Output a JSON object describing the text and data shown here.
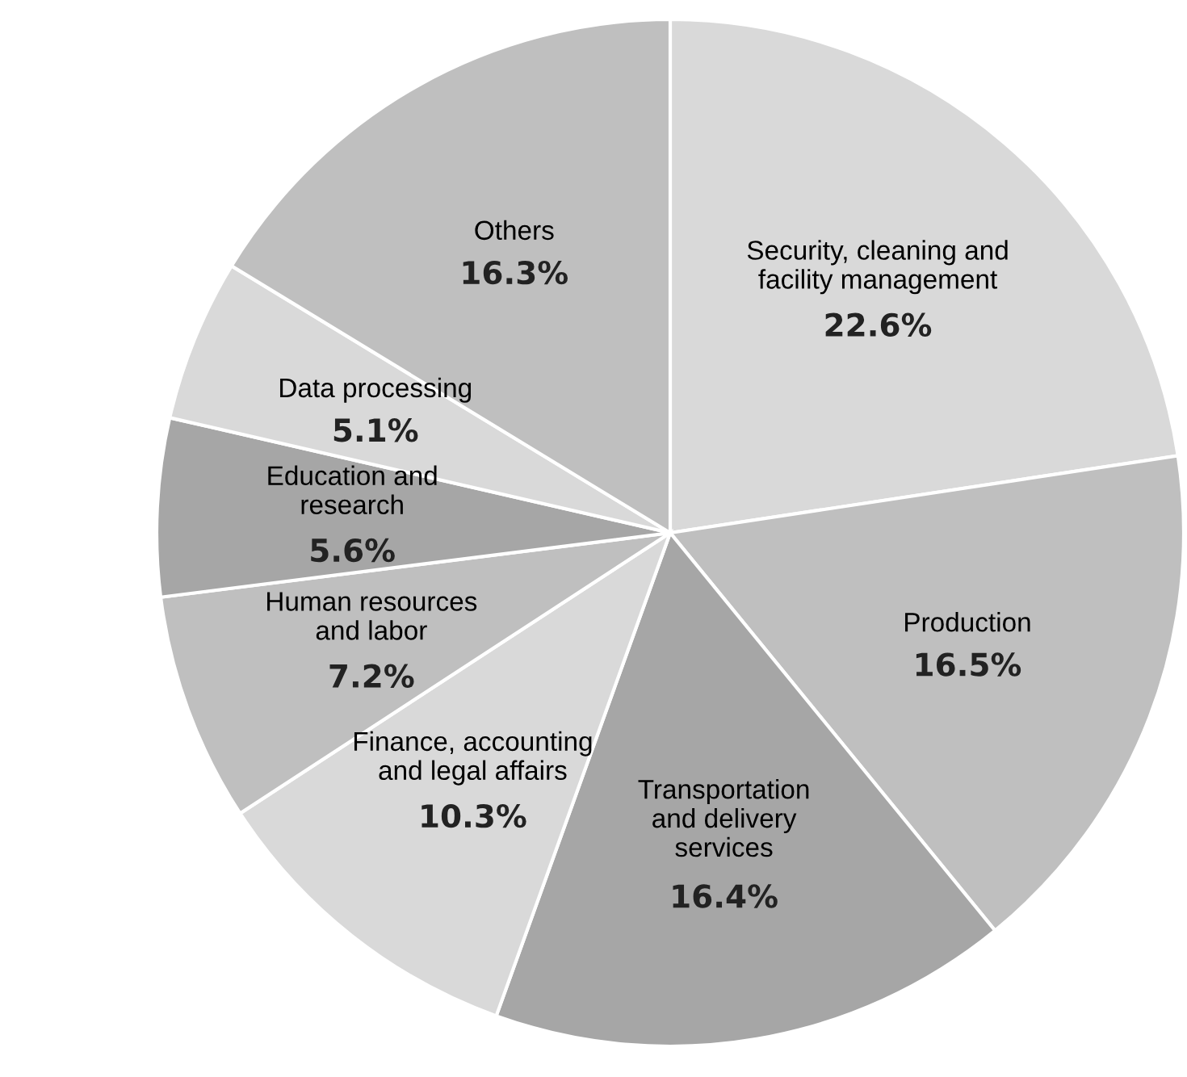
{
  "chart_data": {
    "type": "pie",
    "categories": [
      "Security, cleaning and\nfacility management",
      "Production",
      "Transportation\nand delivery\nservices",
      "Finance, accounting\nand legal affairs",
      "Human resources\nand labor",
      "Education and\nresearch",
      "Data processing",
      "Others"
    ],
    "values": [
      22.6,
      16.5,
      16.4,
      10.3,
      7.2,
      5.6,
      5.1,
      16.3
    ],
    "value_labels": [
      "22.6%",
      "16.5%",
      "16.4%",
      "10.3%",
      "7.2%",
      "5.6%",
      "5.1%",
      "16.3%"
    ],
    "colors": [
      "#d9d9d9",
      "#bfbfbf",
      "#a6a6a6",
      "#d9d9d9",
      "#bfbfbf",
      "#a6a6a6",
      "#d9d9d9",
      "#bfbfbf"
    ],
    "legend": false
  }
}
